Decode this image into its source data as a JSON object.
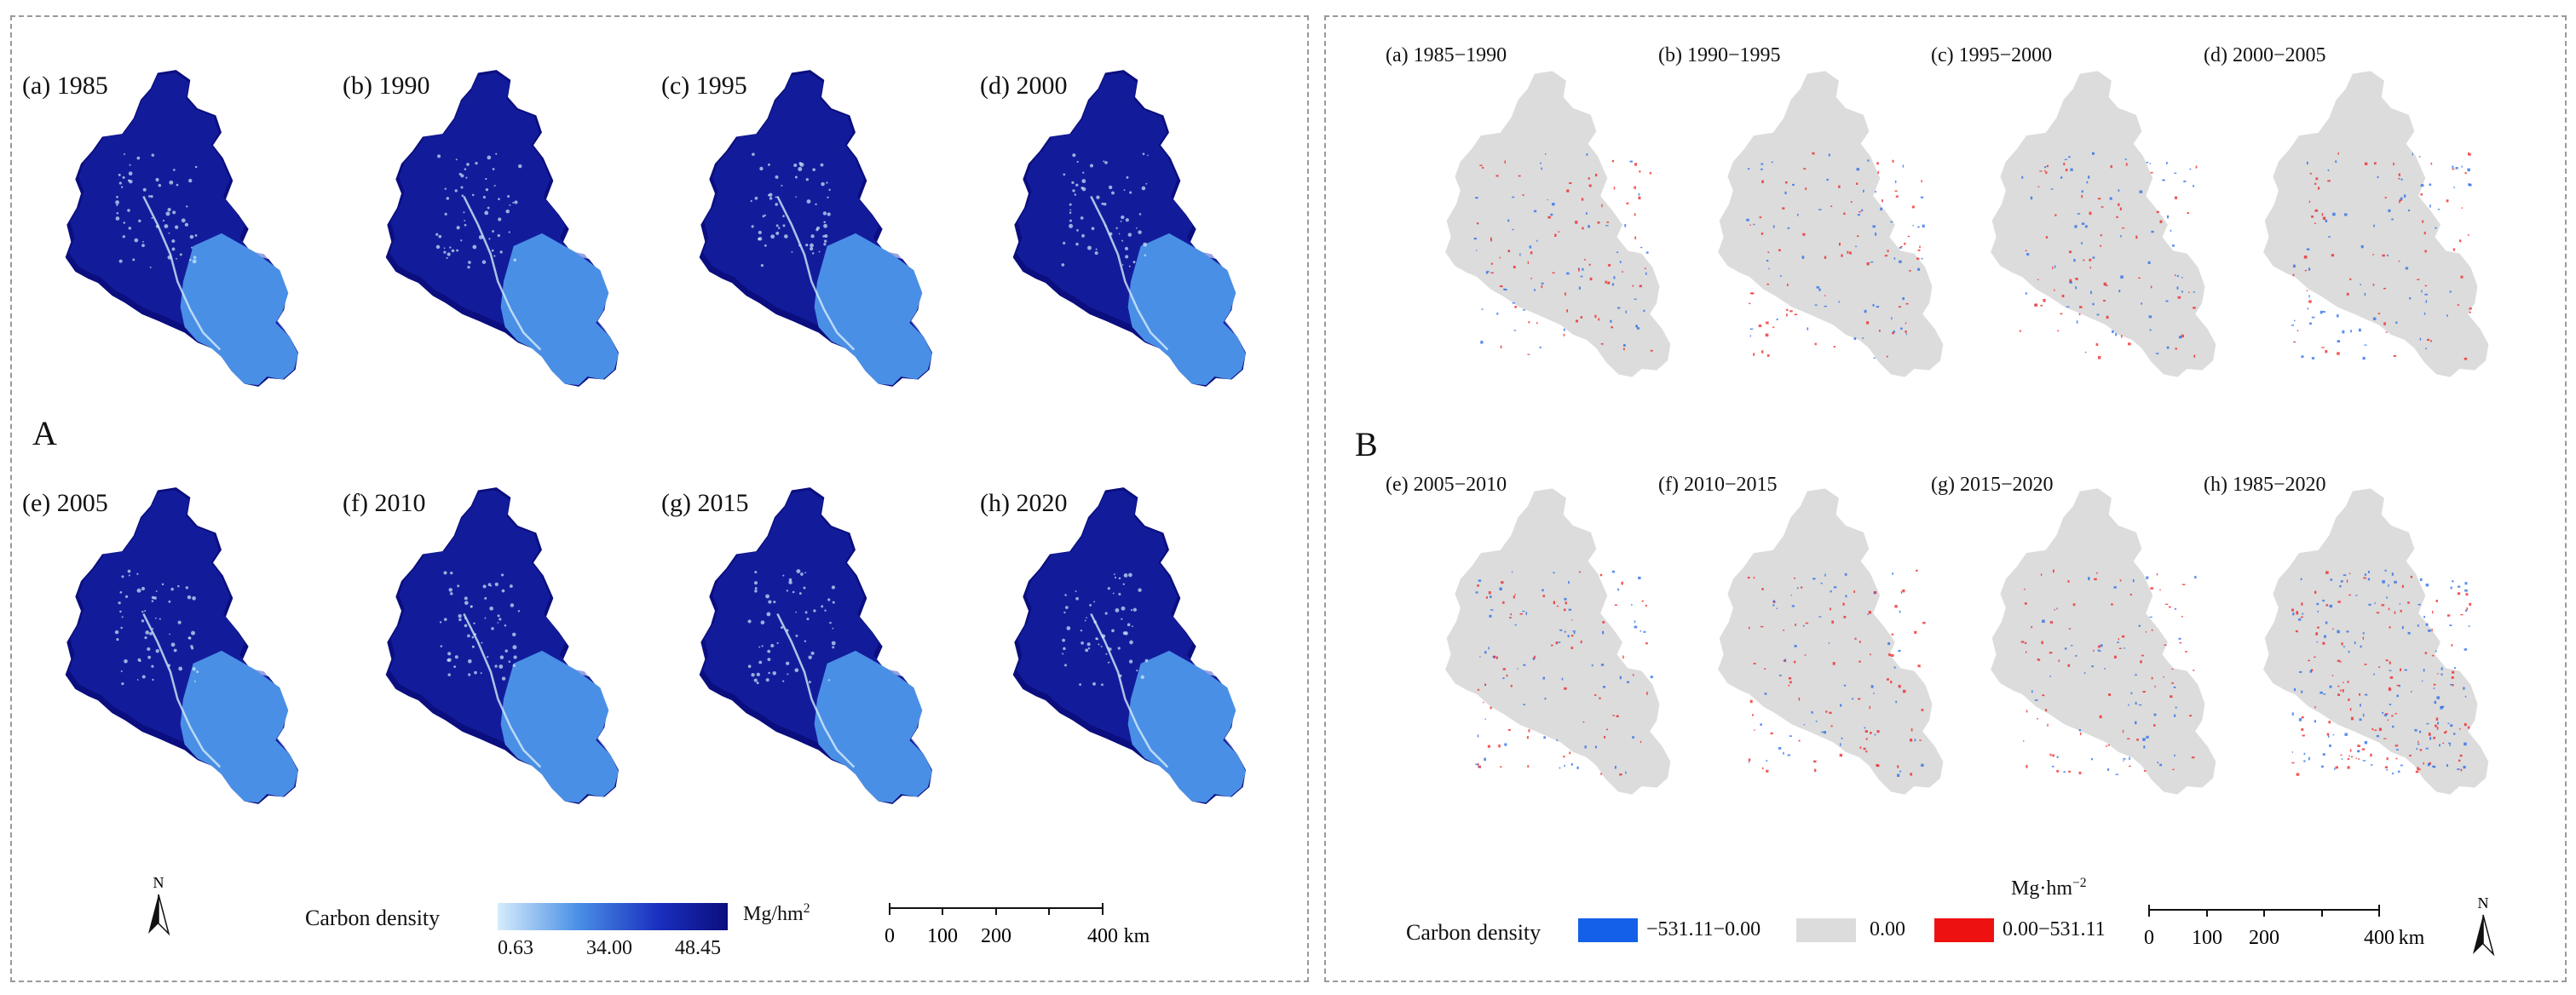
{
  "panel_a": {
    "label": "A",
    "maps": [
      {
        "label": "(a) 1985"
      },
      {
        "label": "(b) 1990"
      },
      {
        "label": "(c) 1995"
      },
      {
        "label": "(d) 2000"
      },
      {
        "label": "(e) 2005"
      },
      {
        "label": "(f) 2010"
      },
      {
        "label": "(g) 2015"
      },
      {
        "label": "(h) 2020"
      }
    ],
    "legend": {
      "title": "Carbon density",
      "min": "0.63",
      "mid": "34.00",
      "max": "48.45",
      "unit": "Mg/hm",
      "unit_sup": "2",
      "colors": [
        "#d6ecfb",
        "#4a8fe6",
        "#1a2fbf",
        "#0b0e7e"
      ]
    },
    "scale": {
      "ticks": [
        "0",
        "100",
        "200",
        "400"
      ],
      "unit": "km"
    },
    "north": "N"
  },
  "panel_b": {
    "label": "B",
    "maps": [
      {
        "label": "(a) 1985−1990"
      },
      {
        "label": "(b) 1990−1995"
      },
      {
        "label": "(c) 1995−2000"
      },
      {
        "label": "(d) 2000−2005"
      },
      {
        "label": "(e) 2005−2010"
      },
      {
        "label": "(f) 2010−2015"
      },
      {
        "label": "(g) 2015−2020"
      },
      {
        "label": "(h) 1985−2020"
      }
    ],
    "legend": {
      "title": "Carbon density",
      "unit": "Mg·hm",
      "unit_sup": "−2",
      "classes": [
        {
          "label": "−531.11−0.00",
          "color": "#1560e8"
        },
        {
          "label": "0.00",
          "color": "#dcdcdc"
        },
        {
          "label": "0.00−531.11",
          "color": "#ee1111"
        }
      ]
    },
    "scale": {
      "ticks": [
        "0",
        "100",
        "200",
        "400"
      ],
      "unit": "km"
    },
    "north": "N"
  }
}
